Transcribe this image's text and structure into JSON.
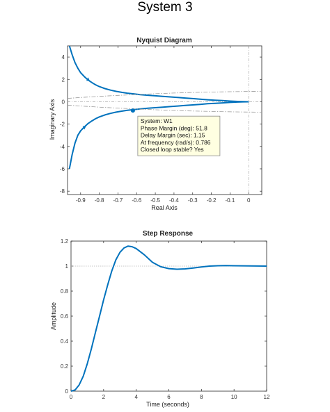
{
  "figure_title": "System 3",
  "colors": {
    "line": "#0072BD",
    "axis": "#262626",
    "grid_ref": "#b4b4b4",
    "tip_bg": "#ffffe1",
    "tip_border": "#888888"
  },
  "chart_data": [
    {
      "type": "line",
      "title": "Nyquist Diagram",
      "xlabel": "Real Axis",
      "ylabel": "Imaginary Axis",
      "xlim": [
        -0.97,
        0.07
      ],
      "ylim": [
        -8.3,
        5.0
      ],
      "xticks": [
        -0.9,
        -0.8,
        -0.7,
        -0.6,
        -0.5,
        -0.4,
        -0.3,
        -0.2,
        -0.1,
        0
      ],
      "xtick_labels": [
        "-0.9",
        "-0.8",
        "-0.7",
        "-0.6",
        "-0.5",
        "-0.4",
        "-0.3",
        "-0.2",
        "-0.1",
        "0"
      ],
      "yticks": [
        -8,
        -6,
        -4,
        -2,
        0,
        2,
        4
      ],
      "ytick_labels": [
        "-8",
        "-6",
        "-4",
        "-2",
        "0",
        "2",
        "4"
      ],
      "series": [
        {
          "style": "solid",
          "x": [
            -0.96,
            -0.945,
            -0.93,
            -0.915,
            -0.9,
            -0.88,
            -0.86,
            -0.84,
            -0.82,
            -0.8,
            -0.77,
            -0.74,
            -0.71,
            -0.68,
            -0.65,
            -0.62,
            -0.58,
            -0.54,
            -0.5,
            -0.46,
            -0.42,
            -0.38,
            -0.34,
            -0.3,
            -0.26,
            -0.22,
            -0.18,
            -0.14,
            -0.1,
            -0.06,
            -0.03,
            0
          ],
          "y": [
            5.0,
            4.2,
            3.5,
            3.0,
            2.6,
            2.25,
            1.95,
            1.72,
            1.52,
            1.36,
            1.18,
            1.04,
            0.93,
            0.84,
            0.77,
            0.71,
            0.64,
            0.58,
            0.53,
            0.48,
            0.43,
            0.38,
            0.33,
            0.28,
            0.23,
            0.18,
            0.14,
            0.1,
            0.06,
            0.03,
            0.012,
            0
          ]
        },
        {
          "style": "solid",
          "x": [
            0,
            -0.03,
            -0.06,
            -0.1,
            -0.14,
            -0.18,
            -0.22,
            -0.26,
            -0.3,
            -0.34,
            -0.38,
            -0.42,
            -0.46,
            -0.5,
            -0.54,
            -0.58,
            -0.62,
            -0.65,
            -0.68,
            -0.71,
            -0.74,
            -0.77,
            -0.8,
            -0.82,
            -0.84,
            -0.86,
            -0.88,
            -0.9,
            -0.915,
            -0.93,
            -0.945,
            -0.96
          ],
          "y": [
            0,
            -0.012,
            -0.03,
            -0.06,
            -0.1,
            -0.14,
            -0.18,
            -0.23,
            -0.28,
            -0.33,
            -0.38,
            -0.43,
            -0.48,
            -0.53,
            -0.58,
            -0.64,
            -0.71,
            -0.77,
            -0.84,
            -0.93,
            -1.04,
            -1.18,
            -1.36,
            -1.52,
            -1.72,
            -1.95,
            -2.25,
            -2.6,
            -3.0,
            -3.7,
            -4.7,
            -6.0
          ]
        },
        {
          "style": "dashdot",
          "x": [
            -0.97,
            -0.9,
            -0.8,
            -0.7,
            -0.6,
            -0.5,
            -0.4,
            -0.3,
            -0.2,
            -0.1,
            0,
            0.07
          ],
          "y": [
            0.3,
            0.38,
            0.48,
            0.57,
            0.65,
            0.72,
            0.78,
            0.83,
            0.87,
            0.9,
            0.92,
            0.93
          ]
        },
        {
          "style": "dashdot",
          "x": [
            -0.97,
            -0.9,
            -0.8,
            -0.7,
            -0.6,
            -0.5,
            -0.4,
            -0.3,
            -0.2,
            -0.1,
            0,
            0.07
          ],
          "y": [
            -0.3,
            -0.38,
            -0.48,
            -0.57,
            -0.65,
            -0.72,
            -0.78,
            -0.83,
            -0.87,
            -0.9,
            -0.92,
            -0.93
          ]
        }
      ],
      "arrows": [
        {
          "x": -0.86,
          "y": 2.0,
          "dir": "up"
        },
        {
          "x": -0.88,
          "y": -2.3,
          "dir": "down"
        }
      ],
      "marker": {
        "x": -0.62,
        "y": -0.79
      },
      "datatip": [
        "System: W1",
        "Phase Margin (deg): 51.8",
        "Delay Margin (sec): 1.15",
        "At frequency (rad/s): 0.786",
        "Closed loop stable? Yes"
      ]
    },
    {
      "type": "line",
      "title": "Step Response",
      "xlabel": "Time (seconds)",
      "ylabel": "Amplitude",
      "xlim": [
        0,
        12
      ],
      "ylim": [
        0,
        1.2
      ],
      "xticks": [
        0,
        2,
        4,
        6,
        8,
        10,
        12
      ],
      "xtick_labels": [
        "0",
        "2",
        "4",
        "6",
        "8",
        "10",
        "12"
      ],
      "yticks": [
        0,
        0.2,
        0.4,
        0.6,
        0.8,
        1,
        1.2
      ],
      "ytick_labels": [
        "0",
        "0.2",
        "0.4",
        "0.6",
        "0.8",
        "1",
        "1.2"
      ],
      "reference_line": 1,
      "series": [
        {
          "style": "solid",
          "x": [
            0,
            0.25,
            0.5,
            0.75,
            1,
            1.25,
            1.5,
            1.75,
            2,
            2.25,
            2.5,
            2.75,
            3,
            3.25,
            3.5,
            3.75,
            4,
            4.5,
            5,
            5.5,
            6,
            6.5,
            7,
            7.5,
            8,
            8.5,
            9,
            9.5,
            10,
            11,
            12
          ],
          "y": [
            0,
            0.01,
            0.05,
            0.12,
            0.22,
            0.34,
            0.47,
            0.6,
            0.73,
            0.85,
            0.96,
            1.05,
            1.11,
            1.145,
            1.16,
            1.155,
            1.14,
            1.09,
            1.03,
            0.995,
            0.98,
            0.975,
            0.978,
            0.985,
            0.993,
            1.0,
            1.003,
            1.004,
            1.003,
            1.001,
            1.0
          ]
        }
      ]
    }
  ]
}
